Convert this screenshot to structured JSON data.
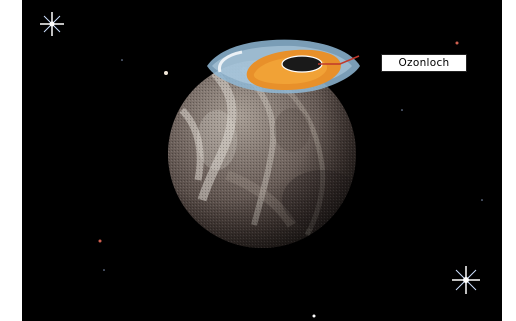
{
  "illustration": {
    "subject": "planet-with-ozone-hole",
    "callout": {
      "label": "Ozonloch",
      "line_color": "#c0392b"
    },
    "colors": {
      "sky": "#000000",
      "ozone_ring": "#8fb8d6",
      "ozone_hole": "#e8902a",
      "planet_dark": "#3a3230",
      "planet_light": "#8a8078",
      "cloud": "#d8d8d8",
      "star": "#ffffff"
    }
  }
}
